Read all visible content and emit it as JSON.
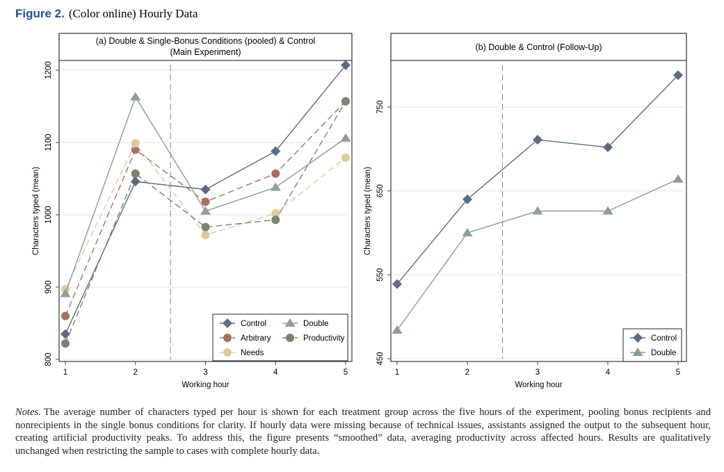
{
  "figure": {
    "label": "Figure 2.",
    "title": "(Color online) Hourly Data"
  },
  "notes": {
    "label": "Notes.",
    "text": "The average number of characters typed per hour is shown for each treatment group across the five hours of the experiment, pooling bonus recipients and nonrecipients in the single bonus conditions for clarity. If hourly data were missing because of technical issues, assistants assigned the output to the subsequent hour, creating artificial productivity peaks. To address this, the figure presents “smoothed” data, averaging productivity across affected hours. Results are qualitatively unchanged when restricting the sample to cases with complete hourly data."
  },
  "chart_data": [
    {
      "type": "line",
      "title": "(a) Double & Single-Bonus Conditions (pooled) & Control",
      "subtitle": "(Main Experiment)",
      "xlabel": "Working hour",
      "ylabel": "Characters typed (mean)",
      "x": [
        1,
        2,
        3,
        4,
        5
      ],
      "xticks": [
        "1",
        "2",
        "3",
        "4",
        "5"
      ],
      "yticks": [
        "800",
        "900",
        "1000",
        "1100",
        "1200"
      ],
      "ylim": [
        800,
        1200
      ],
      "vline": 2.5,
      "grid": true,
      "legend": "bottom-right",
      "series": [
        {
          "name": "Control",
          "marker": "diamond",
          "dash": false,
          "color": "#5a6b82",
          "values": [
            835,
            1046,
            1035,
            1088,
            1207
          ]
        },
        {
          "name": "Arbitrary",
          "marker": "circle",
          "dash": true,
          "color": "#a86f60",
          "values": [
            860,
            1090,
            1018,
            1057,
            1157
          ]
        },
        {
          "name": "Needs",
          "marker": "circle",
          "dash": true,
          "color": "#dccb9c",
          "values": [
            897,
            1099,
            972,
            1002,
            1079
          ]
        },
        {
          "name": "Double",
          "marker": "triangle",
          "dash": false,
          "color": "#8e9c9c",
          "values": [
            891,
            1163,
            1005,
            1038,
            1106
          ]
        },
        {
          "name": "Productivity",
          "marker": "circle",
          "dash": true,
          "color": "#7a8470",
          "values": [
            822,
            1057,
            983,
            993,
            1157
          ]
        }
      ]
    },
    {
      "type": "line",
      "title": "(b) Double & Control (Follow-Up)",
      "subtitle": "",
      "xlabel": "Working hour",
      "ylabel": "Characters typed (mean)",
      "x": [
        1,
        2,
        3,
        4,
        5
      ],
      "xticks": [
        "1",
        "2",
        "3",
        "4",
        "5"
      ],
      "yticks": [
        "450",
        "550",
        "650",
        "750"
      ],
      "ylim": [
        450,
        750
      ],
      "vline": 2.5,
      "grid": true,
      "legend": "bottom-right",
      "series": [
        {
          "name": "Control",
          "marker": "diamond",
          "dash": false,
          "color": "#5a6b82",
          "values": [
            539,
            640,
            711,
            702,
            788
          ]
        },
        {
          "name": "Double",
          "marker": "triangle",
          "dash": false,
          "color": "#8e9c9c",
          "values": [
            484,
            600,
            626,
            626,
            664
          ]
        }
      ]
    }
  ]
}
